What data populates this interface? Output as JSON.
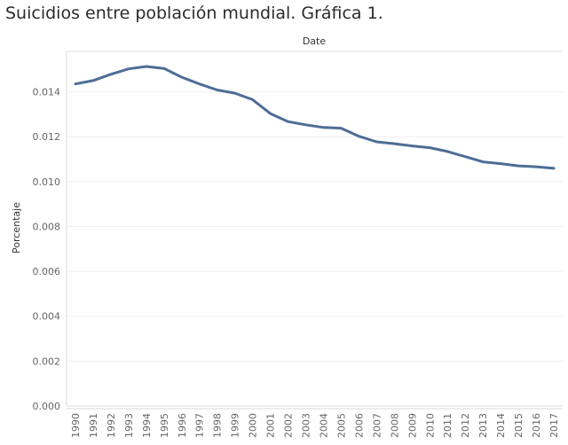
{
  "title": "Suicidios entre población mundial. Gráfica 1.",
  "chart_data": {
    "type": "line",
    "title": "Suicidios entre población mundial. Gráfica 1.",
    "x_header": "Date",
    "ylabel": "Porcentaje",
    "ylim": [
      0,
      0.0158
    ],
    "yticks": [
      "0.000",
      "0.002",
      "0.004",
      "0.006",
      "0.008",
      "0.010",
      "0.012",
      "0.014"
    ],
    "categories": [
      "1990",
      "1991",
      "1992",
      "1993",
      "1994",
      "1995",
      "1996",
      "1997",
      "1998",
      "1999",
      "2000",
      "2001",
      "2002",
      "2003",
      "2004",
      "2005",
      "2006",
      "2007",
      "2008",
      "2009",
      "2010",
      "2011",
      "2012",
      "2013",
      "2014",
      "2015",
      "2016",
      "2017"
    ],
    "values": [
      0.01435,
      0.0145,
      0.01478,
      0.01502,
      0.01513,
      0.01504,
      0.01465,
      0.01435,
      0.01408,
      0.01394,
      0.01365,
      0.01303,
      0.01267,
      0.01253,
      0.01241,
      0.01238,
      0.01202,
      0.01177,
      0.01169,
      0.01159,
      0.01151,
      0.01134,
      0.01111,
      0.01088,
      0.0108,
      0.0107,
      0.01066,
      0.01059
    ],
    "grid": true,
    "line_color": "#4e6d96"
  }
}
